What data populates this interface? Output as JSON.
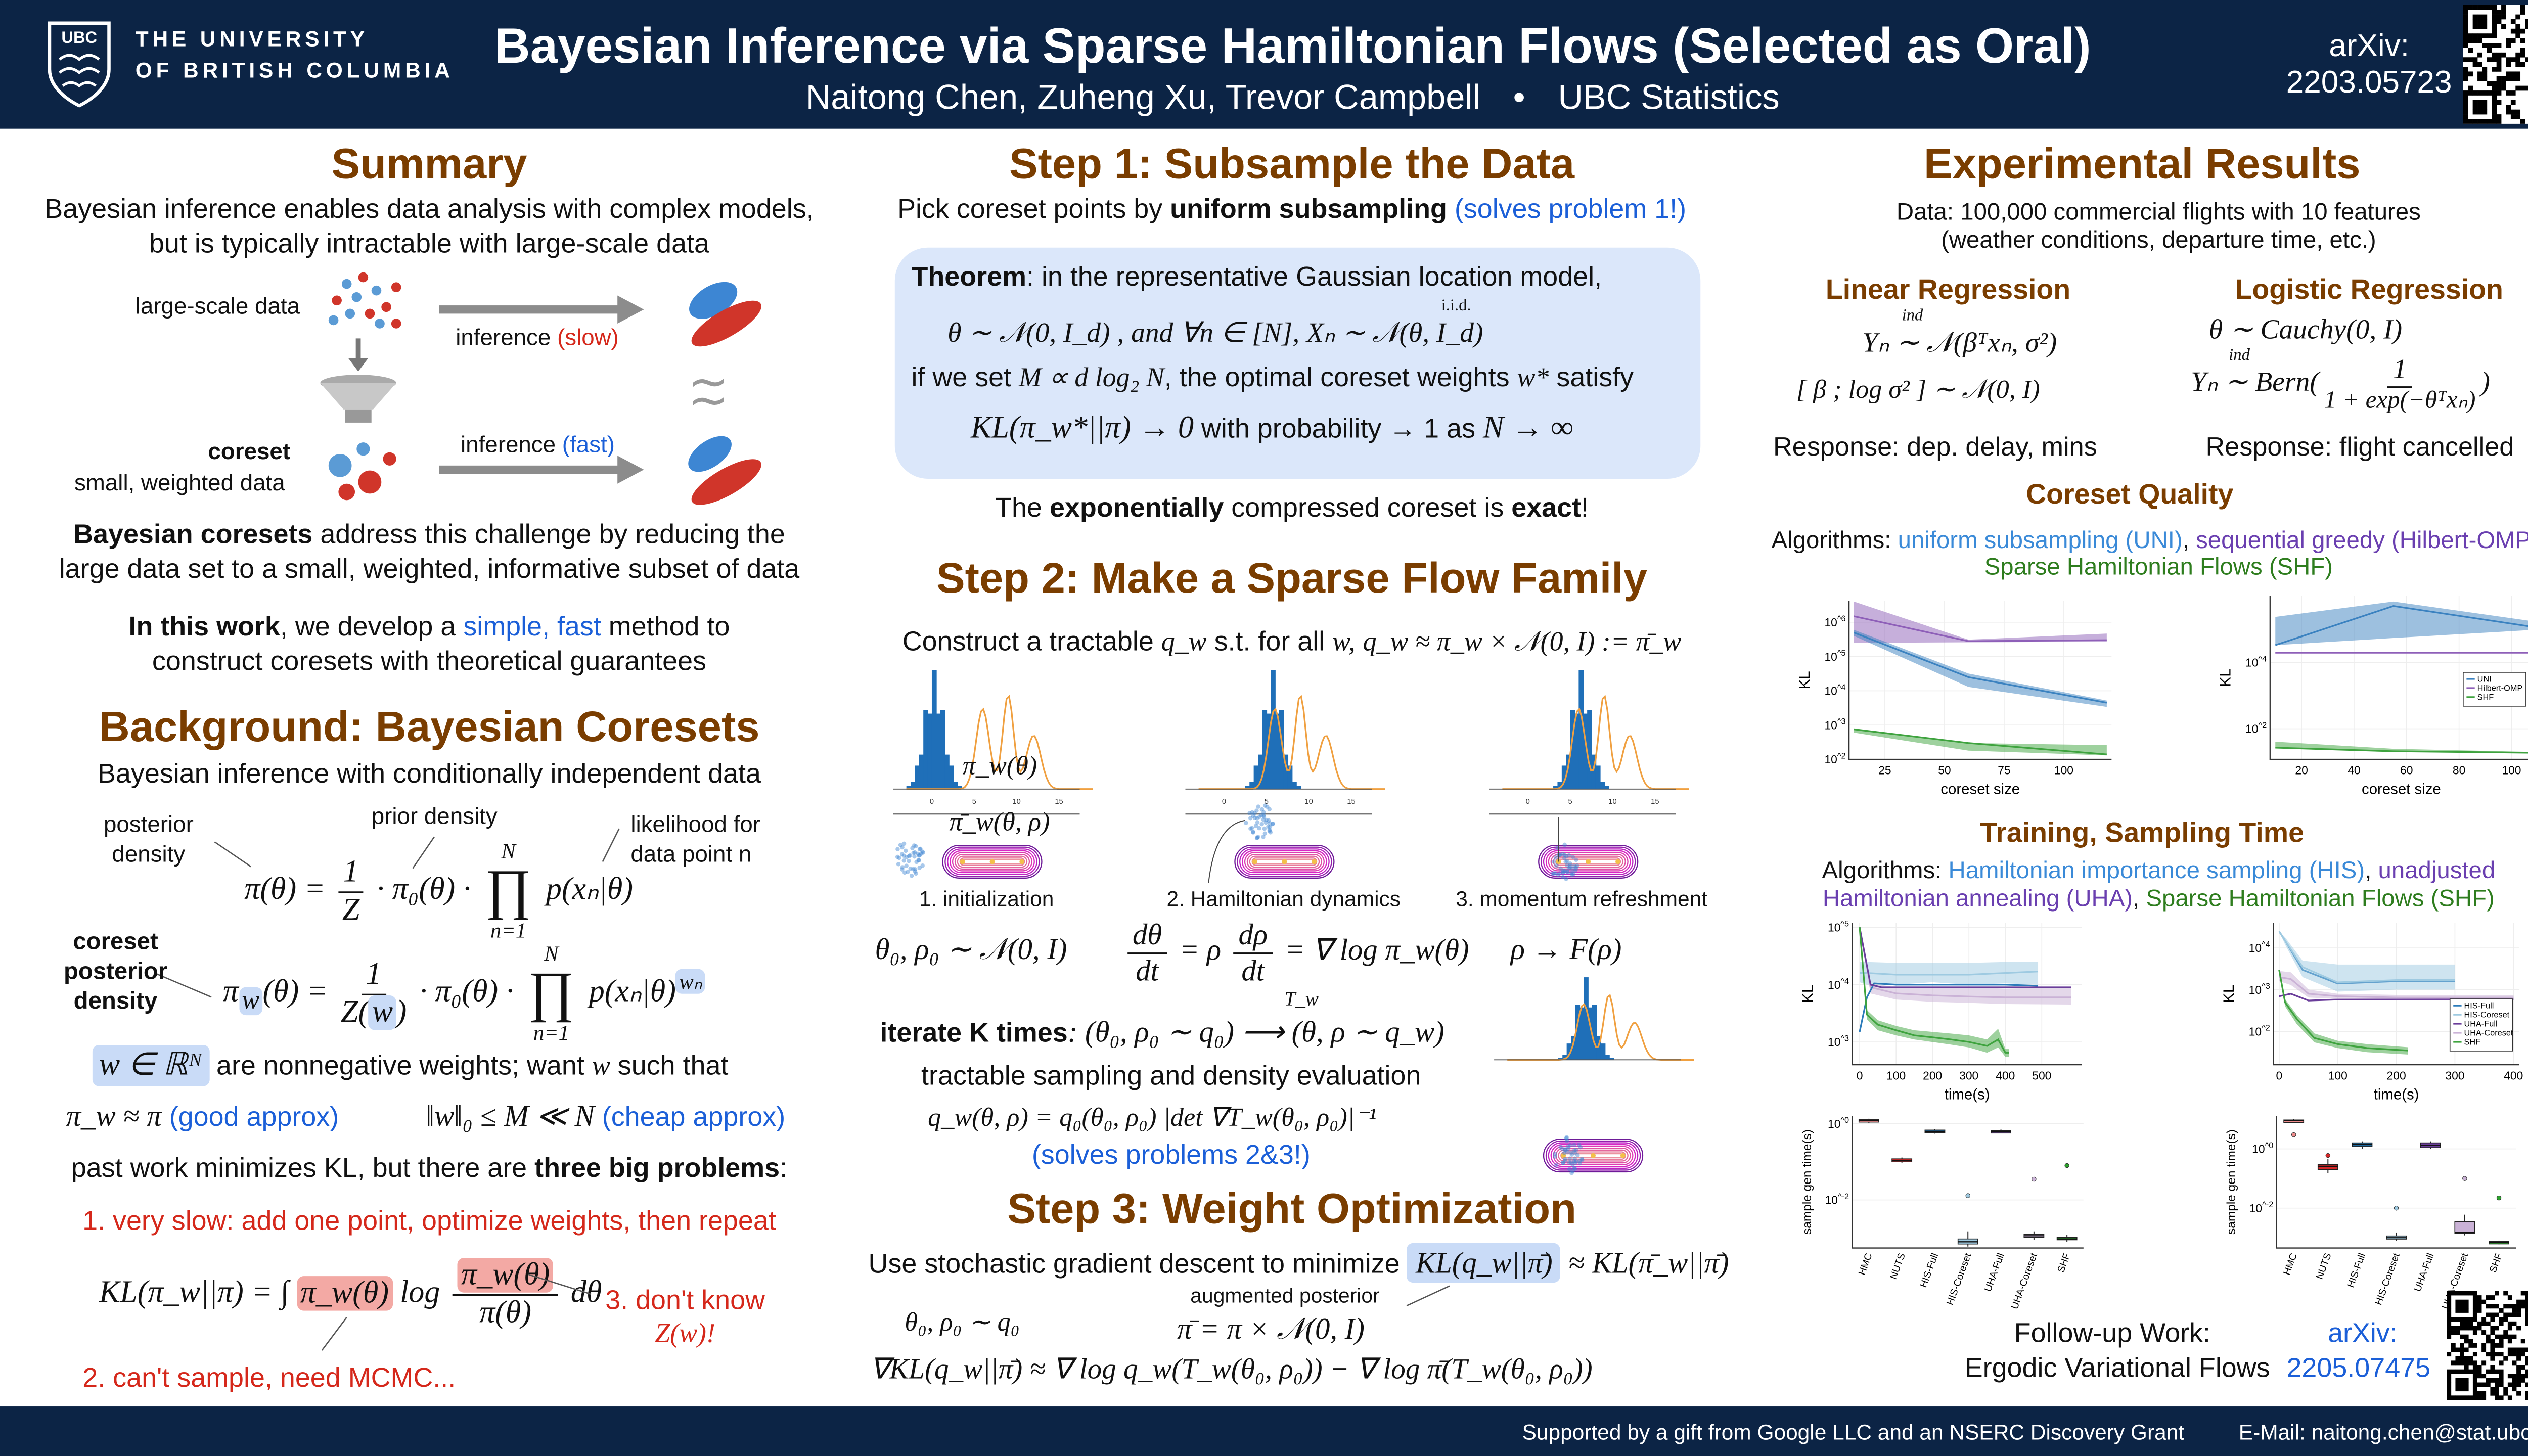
{
  "header": {
    "logo_text": "UBC",
    "university_line1": "THE UNIVERSITY",
    "university_line2": "OF BRITISH COLUMBIA",
    "title": "Bayesian Inference via Sparse Hamiltonian Flows (Selected as Oral)",
    "authors": "Naitong Chen, Zuheng Xu, Trevor Campbell",
    "bullet": "•",
    "affiliation": "UBC Statistics",
    "arxiv_label": "arXiv:",
    "arxiv_id": "2203.05723"
  },
  "summary": {
    "heading": "Summary",
    "line1": "Bayesian inference enables data analysis with complex models,",
    "line2": "but is typically intractable with large-scale data",
    "large_data_label": "large-scale data",
    "inference_slow_a": "inference ",
    "inference_slow_b": "(slow)",
    "coreset_label": "coreset",
    "coreset_sub": "small, weighted data",
    "inference_fast_a": "inference ",
    "inference_fast_b": "(fast)",
    "approx_symbol": "≀≀",
    "coresets_bold": "Bayesian coresets",
    "coresets_rest": " address this challenge by reducing the",
    "coresets_line2": "large data set to a small, weighted, informative subset of data",
    "work_bold": "In this work",
    "work_a": ", we develop a ",
    "work_blue": "simple, fast",
    "work_b": " method to",
    "work_line2": "construct coresets with theoretical guarantees"
  },
  "background": {
    "heading": "Background: Bayesian Coresets",
    "intro": "Bayesian inference with conditionally independent data",
    "posterior_label1": "posterior",
    "posterior_label2": "density",
    "prior_label": "prior density",
    "likelihood_label1": "likelihood for",
    "likelihood_label2": "data point n",
    "eq1_lhs": "π(θ) =",
    "eq1_num": "1",
    "eq1_den": "Z",
    "eq1_mid": "· π₀(θ) ·",
    "prod_top": "N",
    "prod_sym": "∏",
    "prod_bot": "n=1",
    "eq1_rhs": "p(xₙ|θ)",
    "coreset_post1": "coreset",
    "coreset_post2": "posterior",
    "coreset_post3": "density",
    "eq2_pi": "π",
    "eq2_w": "w",
    "eq2_lhs_rest": "(θ) =",
    "eq2_num": "1",
    "eq2_den_a": "Z(",
    "eq2_den_w": "w",
    "eq2_den_b": ")",
    "eq2_mid": "· π₀(θ) ·",
    "eq2_rhs": "p(xₙ|θ)",
    "eq2_sup": "wₙ",
    "weights_math": "w ∈ ℝᴺ",
    "weights_text": " are nonnegative weights; want ",
    "weights_w": "w",
    "weights_text2": " such that",
    "approx_math": "π_w ≈ π",
    "approx_good": " (good approx)",
    "sparse_math": "‖w‖₀ ≤ M ≪ N",
    "sparse_cheap": " (cheap approx)",
    "past_a": "past work minimizes KL, but there are ",
    "past_bold": "three big problems",
    "past_b": ":",
    "problem1": "1. very slow: add one point, optimize weights, then repeat",
    "kl_lhs": "KL(π_w||π) = ∫",
    "kl_box1": "π_w(θ)",
    "kl_log": "log",
    "kl_num": "π_w(θ)",
    "kl_den": "π(θ)",
    "kl_dtheta": "dθ",
    "problem3a": "3. don't know",
    "problem3b": "Z(w)!",
    "problem2": "2. can't sample, need MCMC..."
  },
  "step1": {
    "heading": "Step 1: Subsample the Data",
    "intro_a": "Pick coreset points by ",
    "intro_bold": "uniform subsampling",
    "intro_blue": " (solves problem 1!)",
    "thm_bold": "Theorem",
    "thm_rest": ": in the representative Gaussian location model,",
    "thm_line2": "θ ∼ 𝒩(0, I_d) ,     and     ∀n ∈ [N],     Xₙ ∼ 𝒩(θ, I_d)",
    "thm_iid": "i.i.d.",
    "thm_line3_a": "if we set ",
    "thm_line3_m": "M ∝ d log₂ N",
    "thm_line3_b": ", the optimal coreset weights ",
    "thm_line3_w": "w*",
    "thm_line3_c": " satisfy",
    "thm_line4_a": "KL(π_w*||π) → 0",
    "thm_line4_b": "  with probability → 1  as  ",
    "thm_line4_c": "N → ∞",
    "exact_a": "The ",
    "exact_bold": "exponentially",
    "exact_b": " compressed coreset is ",
    "exact_bold2": "exact",
    "exact_c": "!"
  },
  "step2": {
    "heading": "Step 2: Make a Sparse Flow Family",
    "construct_a": "Construct a tractable ",
    "construct_q": "q_w",
    "construct_b": " s.t. for all ",
    "construct_w": "w,",
    "construct_eq": "q_w ≈ π_w × 𝒩(0, I) := π̄_w",
    "hist_ticks": [
      "0",
      "5",
      "10",
      "15"
    ],
    "pi_label": "π_w(θ)",
    "pibar_label": "π̄_w(θ, ρ)",
    "caption1": "1. initialization",
    "caption2": "2. Hamiltonian dynamics",
    "caption3": "3. momentum refreshment",
    "init_eq": "θ₀, ρ₀ ∼ 𝒩(0, I)",
    "dtheta_num": "dθ",
    "dt": "dt",
    "eq_rho": "= ρ",
    "drho_num": "dρ",
    "eq_grad": "= ∇ log π_w(θ)",
    "refresh_eq": "ρ → F(ρ)",
    "iterate_bold": "iterate K times",
    "iterate_eq": ": (θ₀, ρ₀ ∼ q₀) ⟶ (θ, ρ ∼ q_w)",
    "iterate_T": "T_w",
    "tractable": "tractable sampling and density evaluation",
    "density_eq": "q_w(θ, ρ) = q₀(θ₀, ρ₀) |det ∇T_w(θ₀, ρ₀)|⁻¹",
    "solves": "(solves problems 2&3!)"
  },
  "step3": {
    "heading": "Step 3: Weight Optimization",
    "sgd_text": "Use stochastic gradient descent to minimize ",
    "sgd_box": "KL(q_w||π̄)",
    "sgd_rest": " ≈ KL(π̄_w||π̄)",
    "aug_label": "augmented posterior",
    "q0_eq": "θ₀, ρ₀ ∼ q₀",
    "aug_eq": "π̄ = π × 𝒩(0, I)",
    "grad_eq": "∇KL(q_w||π̄) ≈ ∇ log q_w(T_w(θ₀, ρ₀)) − ∇ log π̄(T_w(θ₀, ρ₀))"
  },
  "results": {
    "heading": "Experimental Results",
    "data_bold": "Data:",
    "data_line1": " 100,000 commercial flights with 10 features",
    "data_line2": "(weather conditions, departure time, etc.)",
    "linreg_heading": "Linear Regression",
    "linreg_eq1": "Yₙ ∼ 𝒩(βᵀxₙ, σ²)",
    "linreg_ind": "ind",
    "linreg_eq2_vec": "[ β ; log σ² ]",
    "linreg_eq2_rest": "∼ 𝒩(0, I)",
    "linreg_resp": "Response: dep. delay, mins",
    "logreg_heading": "Logistic Regression",
    "logreg_eq1": "θ ∼ Cauchy(0, I)",
    "logreg_eq2_a": "Yₙ ∼ Bern",
    "logreg_ind": "ind",
    "logreg_num": "1",
    "logreg_den": "1 + exp(−θᵀxₙ)",
    "logreg_resp": "Response: flight cancelled",
    "cq_heading": "Coreset Quality",
    "cq_alg_label": "Algorithms: ",
    "cq_alg_uni": "uniform subsampling (UNI)",
    "cq_comma": ", ",
    "cq_alg_omp": "sequential greedy (Hilbert-OMP)",
    "cq_comma2": ",",
    "cq_alg_shf": "Sparse Hamiltonian Flows (SHF)",
    "ts_heading": "Training, Sampling Time",
    "ts_alg_label": "Algorithms: ",
    "ts_alg_his": "Hamiltonian importance sampling (HIS)",
    "ts_comma": ", ",
    "ts_alg_uha1": "unadjusted",
    "ts_alg_uha2": "Hamiltonian annealing (UHA)",
    "ts_alg_shf": "Sparse Hamiltonian Flows (SHF)",
    "follow_label": "Follow-up Work:",
    "follow_arxiv": "arXiv:",
    "follow_title": "Ergodic Variational Flows",
    "follow_id": "2205.07475"
  },
  "footer": {
    "support": "Supported by a gift from Google LLC and an NSERC Discovery Grant",
    "email": "E-Mail: naitong.chen@stat.ubc.ca"
  },
  "colors": {
    "navy": "#0c2445",
    "heading_brown": "#7a3d00",
    "blue": "#1b5fd8",
    "red": "#d5281b",
    "green": "#2e7d1e",
    "purple": "#6a3fb0"
  },
  "chart_data": [
    {
      "id": "cq_linear",
      "type": "line",
      "xlabel": "coreset size",
      "ylabel": "KL",
      "xlim": [
        10,
        120
      ],
      "ylim": [
        100,
        4200000
      ],
      "ylog": true,
      "xticks": [
        25,
        50,
        75,
        100
      ],
      "yticks": [
        100,
        1000,
        10000,
        100000,
        1000000
      ],
      "ytick_labels": [
        "10^2",
        "10^3",
        "10^4",
        "10^5",
        "10^6"
      ],
      "legend": false,
      "series": [
        {
          "name": "Hilbert-OMP",
          "color": "#8e5fb8",
          "x": [
            12,
            60,
            118
          ],
          "y": [
            1500000,
            280000,
            300000
          ],
          "lo": [
            250000,
            260000,
            270000
          ],
          "hi": [
            4000000,
            310000,
            470000
          ]
        },
        {
          "name": "UNI",
          "color": "#3b82c0",
          "x": [
            12,
            60,
            118
          ],
          "y": [
            500000,
            25000,
            4500
          ],
          "lo": [
            400000,
            13000,
            3400
          ],
          "hi": [
            600000,
            32000,
            5200
          ]
        },
        {
          "name": "SHF",
          "color": "#3ea33e",
          "x": [
            12,
            60,
            118
          ],
          "y": [
            750,
            300,
            140
          ],
          "lo": [
            600,
            180,
            130
          ],
          "hi": [
            800,
            300,
            260
          ]
        }
      ]
    },
    {
      "id": "cq_logistic",
      "type": "line",
      "xlabel": "coreset size",
      "ylabel": "KL",
      "xlim": [
        8,
        108
      ],
      "ylim": [
        12,
        1000000
      ],
      "ylog": true,
      "xticks": [
        20,
        40,
        60,
        80,
        100
      ],
      "yticks": [
        100,
        10000
      ],
      "ytick_labels": [
        "10^2",
        "10^4"
      ],
      "legend": true,
      "series": [
        {
          "name": "UNI",
          "color": "#3b82c0",
          "x": [
            10,
            55,
            108
          ],
          "y": [
            33000,
            500000,
            117000
          ],
          "lo": [
            33000,
            54000,
            95000
          ],
          "hi": [
            234000,
            676000,
            174000
          ]
        },
        {
          "name": "Hilbert-OMP",
          "color": "#8e5fb8",
          "x": [
            10,
            55,
            108
          ],
          "y": [
            19500,
            19500,
            19500
          ]
        },
        {
          "name": "SHF",
          "color": "#3ea33e",
          "x": [
            10,
            55,
            108
          ],
          "y": [
            27,
            21,
            19
          ],
          "lo": [
            27,
            21,
            19
          ],
          "hi": [
            41,
            25,
            20
          ]
        }
      ]
    },
    {
      "id": "time_linear",
      "type": "line",
      "xlabel": "time(s)",
      "ylabel": "KL",
      "xlim": [
        -20,
        610
      ],
      "ylim": [
        400,
        120000
      ],
      "ylog": true,
      "xticks": [
        0,
        100,
        200,
        300,
        400,
        500
      ],
      "yticks": [
        1000,
        10000,
        100000
      ],
      "ytick_labels": [
        "10^3",
        "10^4",
        "10^5"
      ],
      "legend": false,
      "series": [
        {
          "name": "HIS-Coreset",
          "color": "#9ecae1",
          "x": [
            0,
            20,
            100,
            200,
            300,
            400,
            490
          ],
          "y": [
            16000,
            16000,
            15000,
            15000,
            15000,
            16000,
            17000
          ],
          "lo": [
            11000,
            10000,
            10000,
            11000,
            10000,
            10500,
            10000
          ],
          "hi": [
            25000,
            25000,
            24000,
            24000,
            24000,
            25000,
            25000
          ]
        },
        {
          "name": "UHA-Coreset",
          "color": "#cab2d6",
          "x": [
            0,
            30,
            100,
            200,
            300,
            400,
            580
          ],
          "y": [
            100000,
            9000,
            7000,
            6500,
            6200,
            6000,
            6000
          ],
          "lo": [
            100000,
            7000,
            5500,
            5000,
            4800,
            4600,
            4500
          ],
          "hi": [
            100000,
            10500,
            9000,
            9000,
            9000,
            8500,
            9000
          ]
        },
        {
          "name": "HIS-Full",
          "color": "#2b7bba",
          "x": [
            0,
            20,
            40,
            100,
            200,
            300,
            400,
            490
          ],
          "y": [
            1500,
            6000,
            10500,
            10000,
            10000,
            10000,
            10000,
            9500
          ]
        },
        {
          "name": "UHA-Full",
          "color": "#6a3d9a",
          "x": [
            0,
            30,
            60,
            200,
            400,
            580
          ],
          "y": [
            100000,
            10000,
            9000,
            9000,
            9000,
            9000
          ]
        },
        {
          "name": "SHF",
          "color": "#3ea33e",
          "x": [
            0,
            20,
            50,
            100,
            150,
            200,
            250,
            300,
            350,
            380,
            400,
            410
          ],
          "y": [
            100000,
            3000,
            2000,
            1600,
            1300,
            1200,
            1100,
            1000,
            850,
            1100,
            650,
            650
          ],
          "lo": [
            100000,
            2500,
            1600,
            1300,
            1100,
            1000,
            900,
            800,
            650,
            800,
            550,
            550
          ],
          "hi": [
            100000,
            3600,
            2400,
            1900,
            1600,
            1500,
            1400,
            1300,
            1100,
            1700,
            750,
            750
          ]
        }
      ]
    },
    {
      "id": "time_logistic",
      "type": "line",
      "xlabel": "time(s)",
      "ylabel": "KL",
      "xlim": [
        -10,
        410
      ],
      "ylim": [
        16,
        40000
      ],
      "ylog": true,
      "xticks": [
        0,
        100,
        200,
        300,
        400
      ],
      "yticks": [
        100,
        1000,
        10000
      ],
      "ytick_labels": [
        "10^2",
        "10^3",
        "10^4"
      ],
      "legend": true,
      "series": [
        {
          "name": "HIS-Full",
          "color": "#2b7bba",
          "x": [
            0,
            10,
            40,
            100,
            200,
            300
          ],
          "y": [
            25000,
            15000,
            3000,
            1400,
            1600,
            1600
          ]
        },
        {
          "name": "HIS-Coreset",
          "color": "#9ecae1",
          "x": [
            0,
            10,
            40,
            100,
            200,
            300
          ],
          "y": [
            25000,
            15000,
            3500,
            1500,
            1700,
            1700
          ],
          "lo": [
            25000,
            12000,
            2000,
            900,
            1000,
            1000
          ],
          "hi": [
            25000,
            18000,
            5000,
            4000,
            4000,
            4000
          ]
        },
        {
          "name": "UHA-Full",
          "color": "#6a3d9a",
          "x": [
            0,
            20,
            50,
            100,
            400
          ],
          "y": [
            700,
            800,
            550,
            580,
            600
          ]
        },
        {
          "name": "UHA-Coreset",
          "color": "#cab2d6",
          "x": [
            0,
            20,
            50,
            100,
            200,
            400
          ],
          "y": [
            2000,
            1800,
            800,
            700,
            650,
            650
          ],
          "lo": [
            1600,
            1300,
            650,
            600,
            580,
            580
          ],
          "hi": [
            2800,
            2600,
            1000,
            800,
            750,
            750
          ]
        },
        {
          "name": "SHF",
          "color": "#3ea33e",
          "x": [
            0,
            10,
            30,
            60,
            100,
            150,
            220
          ],
          "y": [
            3000,
            500,
            200,
            70,
            50,
            40,
            35
          ],
          "lo": [
            3000,
            400,
            150,
            55,
            40,
            32,
            28
          ],
          "hi": [
            3000,
            600,
            250,
            90,
            60,
            50,
            42
          ]
        }
      ]
    },
    {
      "id": "box_linear",
      "type": "box",
      "ylabel": "sample gen time(s)",
      "ylim": [
        0.00055,
        1.6
      ],
      "ylog": true,
      "yticks": [
        0.01,
        1
      ],
      "ytick_labels": [
        "10^-2",
        "10^0"
      ],
      "categories": [
        "HMC",
        "NUTS",
        "HIS-Full",
        "HIS-Coreset",
        "UHA-Full",
        "UHA-Coreset",
        "SHF"
      ],
      "colors": [
        "#f08c8c",
        "#d62728",
        "#1f77b4",
        "#9ecae1",
        "#6a3d9a",
        "#cab2d6",
        "#2ca02c"
      ],
      "stats": [
        [
          1.05,
          1.1,
          1.2,
          1.3,
          1.35
        ],
        [
          0.095,
          0.1,
          0.11,
          0.12,
          0.13
        ],
        [
          0.55,
          0.6,
          0.63,
          0.68,
          0.72
        ],
        [
          0.0006,
          0.0007,
          0.0008,
          0.00095,
          0.0015
        ],
        [
          0.58,
          0.6,
          0.63,
          0.66,
          0.7
        ],
        [
          0.0009,
          0.00105,
          0.00115,
          0.00125,
          0.0015
        ],
        [
          0.0008,
          0.0009,
          0.00095,
          0.00105,
          0.0012
        ]
      ],
      "outliers": [
        null,
        null,
        null,
        0.013,
        null,
        0.035,
        0.08
      ]
    },
    {
      "id": "box_logistic",
      "type": "box",
      "ylabel": "sample gen time(s)",
      "ylim": [
        0.00045,
        13
      ],
      "ylog": true,
      "yticks": [
        0.01,
        1
      ],
      "ytick_labels": [
        "10^-2",
        "10^0"
      ],
      "categories": [
        "HMC",
        "NUTS",
        "HIS-Full",
        "HIS-Coreset",
        "UHA-Full",
        "UHA-Coreset",
        "SHF"
      ],
      "colors": [
        "#f08c8c",
        "#d62728",
        "#1f77b4",
        "#9ecae1",
        "#6a3d9a",
        "#cab2d6",
        "#2ca02c"
      ],
      "stats": [
        [
          8,
          8.5,
          9,
          9.5,
          10
        ],
        [
          0.15,
          0.2,
          0.26,
          0.3,
          0.45
        ],
        [
          1.0,
          1.2,
          1.4,
          1.6,
          1.8
        ],
        [
          0.0008,
          0.0009,
          0.001,
          0.00115,
          0.0015
        ],
        [
          1.0,
          1.1,
          1.3,
          1.6,
          1.8
        ],
        [
          0.0012,
          0.0014,
          0.0015,
          0.0035,
          0.006
        ],
        [
          0.0006,
          0.00065,
          0.0007,
          0.00075,
          0.0008
        ]
      ],
      "outliers": [
        3,
        0.6,
        null,
        0.01,
        null,
        0.1,
        0.022
      ]
    }
  ]
}
